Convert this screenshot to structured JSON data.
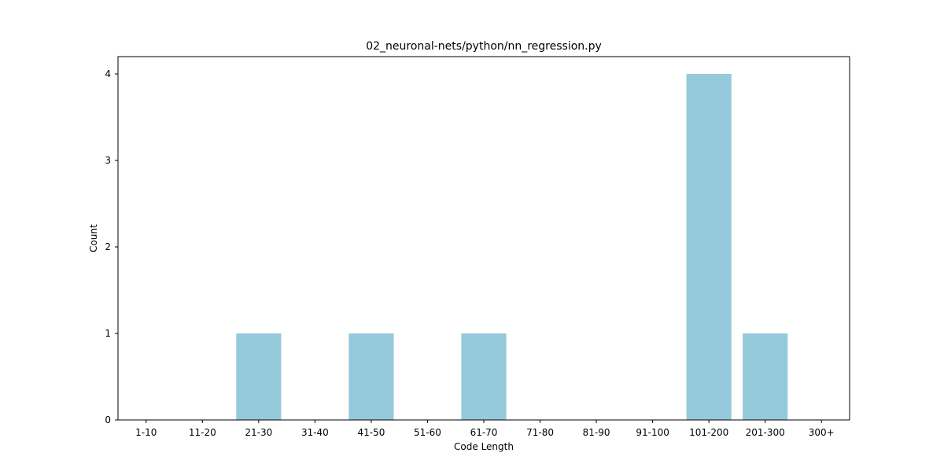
{
  "chart_data": {
    "type": "bar",
    "title": "02_neuronal-nets/python/nn_regression.py",
    "xlabel": "Code Length",
    "ylabel": "Count",
    "categories": [
      "1-10",
      "11-20",
      "21-30",
      "31-40",
      "41-50",
      "51-60",
      "61-70",
      "71-80",
      "81-90",
      "91-100",
      "101-200",
      "201-300",
      "300+"
    ],
    "values": [
      0,
      0,
      1,
      0,
      1,
      0,
      1,
      0,
      0,
      0,
      4,
      1,
      0
    ],
    "ylim": [
      0,
      4.2
    ],
    "yticks": [
      0,
      1,
      2,
      3,
      4
    ],
    "bar_color": "#96c9dc",
    "grid": false,
    "legend": "none"
  }
}
